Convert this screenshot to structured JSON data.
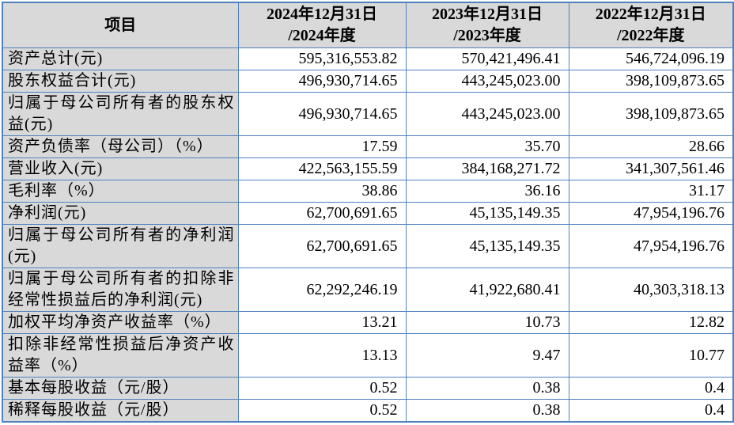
{
  "table": {
    "colors": {
      "border": "#4f81bd",
      "header_bg": "#d9d9d9",
      "label_col_bg": "#d9d9d9",
      "cell_bg": "#ffffff",
      "text": "#000000"
    },
    "header": {
      "item_label": "项目",
      "columns": [
        {
          "line1": "2024年12月31日",
          "line2": "/2024年度"
        },
        {
          "line1": "2023年12月31日",
          "line2": "/2023年度"
        },
        {
          "line1": "2022年12月31日",
          "line2": "/2022年度"
        }
      ]
    },
    "rows": [
      {
        "label": "资产总计(元)",
        "values": [
          "595,316,553.82",
          "570,421,496.41",
          "546,724,096.19"
        ]
      },
      {
        "label": "股东权益合计(元)",
        "values": [
          "496,930,714.65",
          "443,245,023.00",
          "398,109,873.65"
        ]
      },
      {
        "label": "归属于母公司所有者的股东权益(元)",
        "values": [
          "496,930,714.65",
          "443,245,023.00",
          "398,109,873.65"
        ]
      },
      {
        "label": "资产负债率（母公司）（%）",
        "values": [
          "17.59",
          "35.70",
          "28.66"
        ]
      },
      {
        "label": "营业收入(元)",
        "values": [
          "422,563,155.59",
          "384,168,271.72",
          "341,307,561.46"
        ]
      },
      {
        "label": "毛利率（%）",
        "values": [
          "38.86",
          "36.16",
          "31.17"
        ]
      },
      {
        "label": "净利润(元)",
        "values": [
          "62,700,691.65",
          "45,135,149.35",
          "47,954,196.76"
        ]
      },
      {
        "label": "归属于母公司所有者的净利润(元)",
        "values": [
          "62,700,691.65",
          "45,135,149.35",
          "47,954,196.76"
        ]
      },
      {
        "label": "归属于母公司所有者的扣除非经常性损益后的净利润(元)",
        "values": [
          "62,292,246.19",
          "41,922,680.41",
          "40,303,318.13"
        ]
      },
      {
        "label": "加权平均净资产收益率（%）",
        "values": [
          "13.21",
          "10.73",
          "12.82"
        ]
      },
      {
        "label": "扣除非经常性损益后净资产收益率（%）",
        "values": [
          "13.13",
          "9.47",
          "10.77"
        ]
      },
      {
        "label": "基本每股收益（元/股）",
        "values": [
          "0.52",
          "0.38",
          "0.4"
        ]
      },
      {
        "label": "稀释每股收益（元/股）",
        "values": [
          "0.52",
          "0.38",
          "0.4"
        ]
      }
    ]
  }
}
